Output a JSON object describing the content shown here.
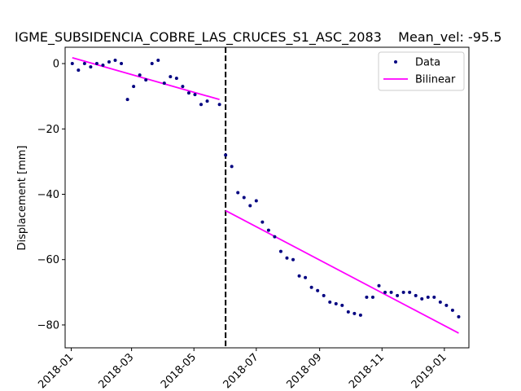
{
  "chart_data": {
    "type": "scatter",
    "title": "IGME_SUBSIDENCIA_COBRE_LAS_CRUCES_S1_ASC_2083    Mean_vel: -95.5",
    "xlabel": "",
    "ylabel": "Displacement [mm]",
    "xlim": [
      "2017-12-26",
      "2019-01-25"
    ],
    "ylim": [
      -87,
      5
    ],
    "x_ticks": [
      {
        "date": "2018-01-01",
        "label": "2018-01"
      },
      {
        "date": "2018-03-01",
        "label": "2018-03"
      },
      {
        "date": "2018-05-01",
        "label": "2018-05"
      },
      {
        "date": "2018-07-01",
        "label": "2018-07"
      },
      {
        "date": "2018-09-01",
        "label": "2018-09"
      },
      {
        "date": "2018-11-01",
        "label": "2018-11"
      },
      {
        "date": "2019-01-01",
        "label": "2019-01"
      }
    ],
    "y_ticks": [
      {
        "value": 0,
        "label": "0"
      },
      {
        "value": -20,
        "label": "−20"
      },
      {
        "value": -40,
        "label": "−40"
      },
      {
        "value": -60,
        "label": "−60"
      },
      {
        "value": -80,
        "label": "−80"
      }
    ],
    "grid": false,
    "legend": {
      "position": "upper right",
      "entries": [
        "Data",
        "Bilinear"
      ]
    },
    "series": [
      {
        "name": "Data",
        "style": "points",
        "color": "#000080",
        "x": [
          "2018-01-02",
          "2018-01-08",
          "2018-01-14",
          "2018-01-20",
          "2018-01-26",
          "2018-02-01",
          "2018-02-07",
          "2018-02-13",
          "2018-02-19",
          "2018-02-25",
          "2018-03-03",
          "2018-03-09",
          "2018-03-15",
          "2018-03-21",
          "2018-03-27",
          "2018-04-02",
          "2018-04-08",
          "2018-04-14",
          "2018-04-20",
          "2018-04-26",
          "2018-05-02",
          "2018-05-08",
          "2018-05-14",
          "2018-05-26",
          "2018-06-01",
          "2018-06-07",
          "2018-06-13",
          "2018-06-19",
          "2018-06-25",
          "2018-07-01",
          "2018-07-07",
          "2018-07-13",
          "2018-07-19",
          "2018-07-25",
          "2018-07-31",
          "2018-08-06",
          "2018-08-12",
          "2018-08-18",
          "2018-08-24",
          "2018-08-30",
          "2018-09-05",
          "2018-09-11",
          "2018-09-17",
          "2018-09-23",
          "2018-09-29",
          "2018-10-05",
          "2018-10-11",
          "2018-10-17",
          "2018-10-23",
          "2018-10-29",
          "2018-11-04",
          "2018-11-10",
          "2018-11-16",
          "2018-11-22",
          "2018-11-28",
          "2018-12-04",
          "2018-12-10",
          "2018-12-16",
          "2018-12-22",
          "2018-12-28",
          "2019-01-03",
          "2019-01-09",
          "2019-01-15"
        ],
        "y": [
          0,
          -2,
          0,
          -1,
          0,
          -0.5,
          0.5,
          1,
          0,
          -11,
          -7,
          -3.5,
          -5,
          0,
          1,
          -6,
          -4,
          -4.5,
          -7,
          -9,
          -9.5,
          -12.5,
          -11.5,
          -12.5,
          -28,
          -31.5,
          -39.5,
          -41,
          -43.5,
          -42,
          -48.5,
          -51,
          -53,
          -57.5,
          -59.5,
          -60,
          -65,
          -65.5,
          -68.5,
          -69.5,
          -71,
          -73,
          -73.5,
          -74,
          -76,
          -76.5,
          -77,
          -71.5,
          -71.5,
          -68,
          -70,
          -70,
          -71,
          -70,
          -70,
          -71,
          -72,
          -71.5,
          -71.5,
          -73,
          -74,
          -75.5,
          -77.5
        ]
      },
      {
        "name": "Bilinear",
        "style": "line",
        "color": "#ff00ff",
        "segments": [
          {
            "x": [
              "2018-01-02",
              "2018-05-26"
            ],
            "y": [
              1.8,
              -11
            ]
          },
          {
            "x": [
              "2018-06-01",
              "2019-01-15"
            ],
            "y": [
              -45,
              -82.5
            ]
          }
        ]
      }
    ],
    "annotations": [
      {
        "type": "vline",
        "x": "2018-06-01",
        "style": "dashed",
        "color": "#000000"
      }
    ]
  }
}
